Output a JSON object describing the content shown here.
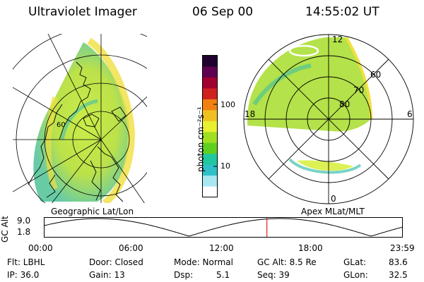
{
  "header": {
    "title": "Ultraviolet Imager",
    "date": "06 Sep 00",
    "time": "14:55:02 UT"
  },
  "left_panel": {
    "caption": "Geographic Lat/Lon",
    "tick_label": "60"
  },
  "colorbar": {
    "unit_label": "photon cm⁻²s⁻¹",
    "ticks": [
      "100",
      "10"
    ],
    "colors": [
      "#ffffff",
      "#a8e8f0",
      "#30c0c8",
      "#20c8a0",
      "#60d020",
      "#a0e020",
      "#e8f030",
      "#f0c020",
      "#f08010",
      "#d02020",
      "#a00030",
      "#600050",
      "#200030"
    ]
  },
  "right_panel": {
    "caption": "Apex MLat/MLT",
    "lat_labels": [
      "80",
      "70",
      "60"
    ],
    "mlt_labels": {
      "top": "12",
      "left": "18",
      "right": "6",
      "bottom": "0"
    }
  },
  "timeline": {
    "axis_label": "GC Alt",
    "y_ticks": [
      "9.0",
      "1.8"
    ],
    "x_ticks": [
      "00:00",
      "06:00",
      "12:00",
      "18:00",
      "23:59"
    ],
    "marker_hour": 14.92,
    "marker_color": "#e02020"
  },
  "info": {
    "flt": "Flt: LBHL",
    "ip": "IP: 36.0",
    "door": "Door: Closed",
    "gain": "Gain: 13",
    "mode": "Mode: Normal",
    "dsp": "Dsp:",
    "dsp_val": "5.1",
    "gcalt": "GC Alt: 8.5 Re",
    "seq": "Seq: 39",
    "glat": "GLat:",
    "glat_val": "83.6",
    "glon": "GLon:",
    "glon_val": "32.5"
  }
}
